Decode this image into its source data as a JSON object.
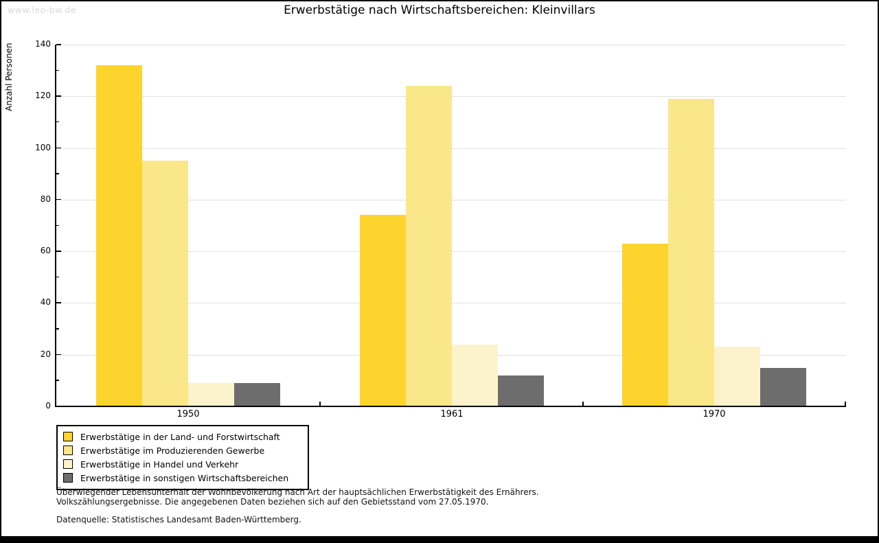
{
  "watermark": "www.leo-bw.de",
  "chart_data": {
    "type": "bar",
    "title": "Erwerbstätige nach Wirtschaftsbereichen: Kleinvillars",
    "ylabel": "Anzahl Personen",
    "xlabel": "",
    "categories": [
      "1950",
      "1961",
      "1970"
    ],
    "series": [
      {
        "name": "Erwerbstätige in der Land- und Forstwirtschaft",
        "color": "#FCD42D",
        "values": [
          132,
          74,
          63
        ]
      },
      {
        "name": "Erwerbstätige im Produzierenden Gewerbe",
        "color": "#FAE78A",
        "values": [
          95,
          124,
          119
        ]
      },
      {
        "name": "Erwerbstätige in Handel und Verkehr",
        "color": "#FCF3CD",
        "values": [
          9,
          24,
          23
        ]
      },
      {
        "name": "Erwerbstätige in sonstigen Wirtschaftsbereichen",
        "color": "#6D6D6D",
        "values": [
          9,
          12,
          15
        ]
      }
    ],
    "ylim": [
      0,
      140
    ],
    "ytick_step": 20,
    "minor_tick_step": 10,
    "grid": true,
    "grid_color": "#E0E0E0",
    "legend_position": "bottom-left"
  },
  "footnotes": {
    "line1": "Überwiegender Lebensunterhalt der Wohnbevölkerung nach Art der hauptsächlichen Erwerbstätigkeit des Ernährers.",
    "line2": "Volkszählungsergebnisse. Die angegebenen Daten beziehen sich auf den Gebietsstand vom 27.05.1970.",
    "source": "Datenquelle: Statistisches Landesamt Baden-Württemberg."
  }
}
